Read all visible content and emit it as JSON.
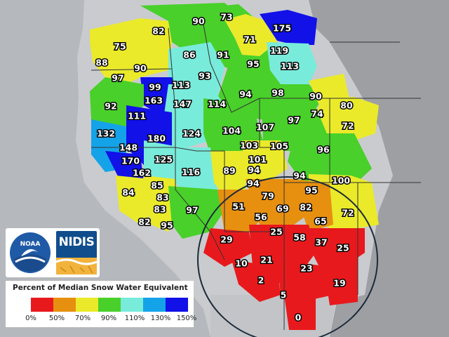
{
  "legend": {
    "title": "Percent of Median Snow Water Equivalent",
    "classes": [
      {
        "color": "#e8191c"
      },
      {
        "color": "#e7900f"
      },
      {
        "color": "#eaea2a"
      },
      {
        "color": "#49d02a"
      },
      {
        "color": "#79ebdb"
      },
      {
        "color": "#14a3e8"
      },
      {
        "color": "#1111e8"
      }
    ],
    "ticks": [
      "0%",
      "50%",
      "70%",
      "90%",
      "110%",
      "130%",
      "150%"
    ]
  },
  "logos": {
    "noaa": "NOAA",
    "nidis": "NIDIS"
  },
  "map_values": [
    {
      "id": "b-90-n",
      "value": "90"
    },
    {
      "id": "b-73",
      "value": "73"
    },
    {
      "id": "b-175",
      "value": "175"
    },
    {
      "id": "b-82-wa",
      "value": "82"
    },
    {
      "id": "b-71",
      "value": "71"
    },
    {
      "id": "b-75",
      "value": "75"
    },
    {
      "id": "b-86",
      "value": "86"
    },
    {
      "id": "b-91",
      "value": "91"
    },
    {
      "id": "b-119",
      "value": "119"
    },
    {
      "id": "b-88",
      "value": "88"
    },
    {
      "id": "b-95-mt",
      "value": "95"
    },
    {
      "id": "b-113-mt",
      "value": "113"
    },
    {
      "id": "b-90-wa",
      "value": "90"
    },
    {
      "id": "b-93",
      "value": "93"
    },
    {
      "id": "b-97-wa",
      "value": "97"
    },
    {
      "id": "b-99",
      "value": "99"
    },
    {
      "id": "b-113-id",
      "value": "113"
    },
    {
      "id": "b-94-mt",
      "value": "94"
    },
    {
      "id": "b-98",
      "value": "98"
    },
    {
      "id": "b-90-wy",
      "value": "90"
    },
    {
      "id": "b-163",
      "value": "163"
    },
    {
      "id": "b-147",
      "value": "147"
    },
    {
      "id": "b-114",
      "value": "114"
    },
    {
      "id": "b-92",
      "value": "92"
    },
    {
      "id": "b-80",
      "value": "80"
    },
    {
      "id": "b-74",
      "value": "74"
    },
    {
      "id": "b-111",
      "value": "111"
    },
    {
      "id": "b-97-wy",
      "value": "97"
    },
    {
      "id": "b-72-ne",
      "value": "72"
    },
    {
      "id": "b-107",
      "value": "107"
    },
    {
      "id": "b-104",
      "value": "104"
    },
    {
      "id": "b-132",
      "value": "132"
    },
    {
      "id": "b-180",
      "value": "180"
    },
    {
      "id": "b-124",
      "value": "124"
    },
    {
      "id": "b-148",
      "value": "148"
    },
    {
      "id": "b-103",
      "value": "103"
    },
    {
      "id": "b-105",
      "value": "105"
    },
    {
      "id": "b-96",
      "value": "96"
    },
    {
      "id": "b-125",
      "value": "125"
    },
    {
      "id": "b-170",
      "value": "170"
    },
    {
      "id": "b-101",
      "value": "101"
    },
    {
      "id": "b-89",
      "value": "89"
    },
    {
      "id": "b-94-ut",
      "value": "94"
    },
    {
      "id": "b-162",
      "value": "162"
    },
    {
      "id": "b-116",
      "value": "116"
    },
    {
      "id": "b-94-co",
      "value": "94"
    },
    {
      "id": "b-100",
      "value": "100"
    },
    {
      "id": "b-94-ut2",
      "value": "94"
    },
    {
      "id": "b-85",
      "value": "85"
    },
    {
      "id": "b-84",
      "value": "84"
    },
    {
      "id": "b-83-a",
      "value": "83"
    },
    {
      "id": "b-79",
      "value": "79"
    },
    {
      "id": "b-95-co",
      "value": "95"
    },
    {
      "id": "b-51",
      "value": "51"
    },
    {
      "id": "b-97-nv",
      "value": "97"
    },
    {
      "id": "b-83-b",
      "value": "83"
    },
    {
      "id": "b-69",
      "value": "69"
    },
    {
      "id": "b-82-co",
      "value": "82"
    },
    {
      "id": "b-72-co",
      "value": "72"
    },
    {
      "id": "b-56",
      "value": "56"
    },
    {
      "id": "b-82-ca",
      "value": "82"
    },
    {
      "id": "b-65",
      "value": "65"
    },
    {
      "id": "b-95-ca",
      "value": "95"
    },
    {
      "id": "b-25-az",
      "value": "25"
    },
    {
      "id": "b-58",
      "value": "58"
    },
    {
      "id": "b-37",
      "value": "37"
    },
    {
      "id": "b-29",
      "value": "29"
    },
    {
      "id": "b-25-nm",
      "value": "25"
    },
    {
      "id": "b-21",
      "value": "21"
    },
    {
      "id": "b-10",
      "value": "10"
    },
    {
      "id": "b-23",
      "value": "23"
    },
    {
      "id": "b-2",
      "value": "2"
    },
    {
      "id": "b-19",
      "value": "19"
    },
    {
      "id": "b-5",
      "value": "5"
    },
    {
      "id": "b-0",
      "value": "0"
    }
  ]
}
